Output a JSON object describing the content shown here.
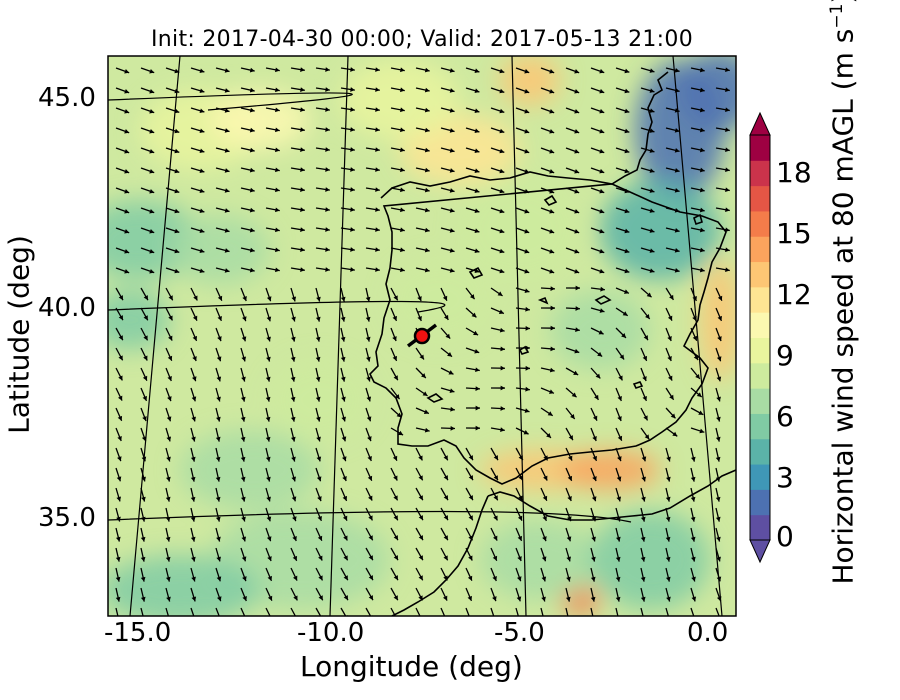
{
  "title": "Init: 2017-04-30 00:00; Valid: 2017-05-13 21:00",
  "xlabel": "Longitude (deg)",
  "ylabel": "Latitude (deg)",
  "colorbar": {
    "label_prefix": "Horizontal wind speed at 80 mAGL (m s",
    "label_exp": "−1",
    "label_suffix": ")",
    "ticks": [
      "0",
      "3",
      "6",
      "9",
      "12",
      "15",
      "18"
    ],
    "colors": [
      "#5e4fa2",
      "#4d71b1",
      "#3f97b7",
      "#5bb3a8",
      "#80cba4",
      "#a8dca4",
      "#cdeb9e",
      "#e9f59e",
      "#fbf8b0",
      "#fee593",
      "#fdc674",
      "#fca35d",
      "#f47c4a",
      "#e45645",
      "#cb334b",
      "#9e0142"
    ]
  },
  "xticks": [
    "-15.0",
    "-10.0",
    "-5.0",
    "0.0"
  ],
  "yticks": [
    "45.0",
    "40.0",
    "35.0"
  ],
  "marker": {
    "lon": -7.7,
    "lat": 39.5,
    "color": "#ee1111"
  }
}
